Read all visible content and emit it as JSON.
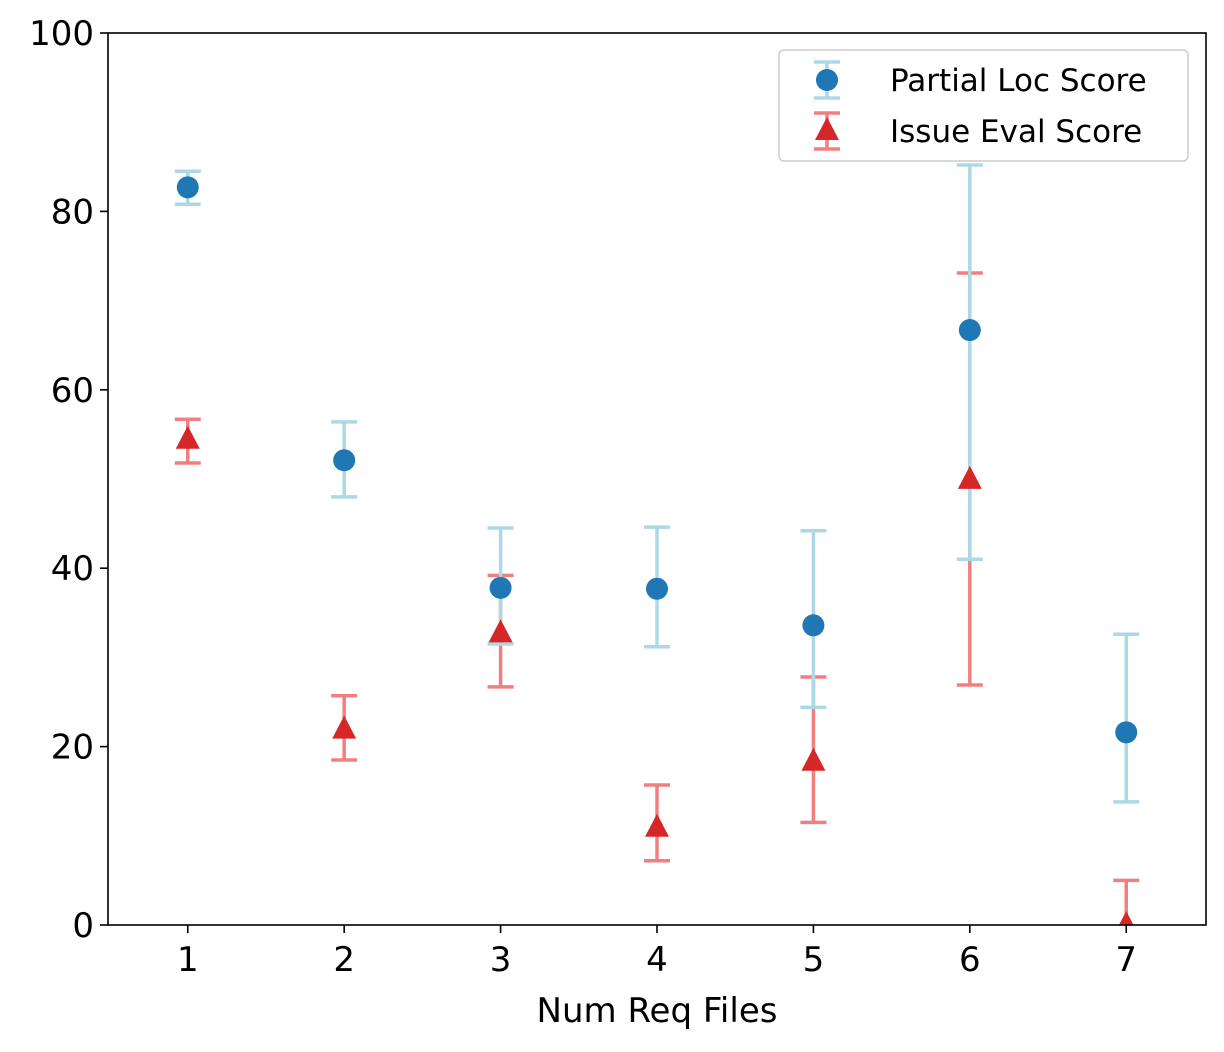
{
  "chart_data": {
    "type": "scatter",
    "title": "",
    "xlabel": "Num Req Files",
    "ylabel": "",
    "xlim": [
      0.49,
      7.51
    ],
    "ylim": [
      0,
      100
    ],
    "xticks": [
      "1",
      "2",
      "3",
      "4",
      "5",
      "6",
      "7"
    ],
    "yticks": [
      "0",
      "20",
      "40",
      "60",
      "80",
      "100"
    ],
    "grid": false,
    "legend_position": "top-right",
    "x": [
      1,
      2,
      3,
      4,
      5,
      6,
      7
    ],
    "series": [
      {
        "name": "Partial Loc Score",
        "marker": "circle",
        "color": "#1f77b4",
        "error_color": "#add8e6",
        "values": [
          82.7,
          52.1,
          37.8,
          37.7,
          33.6,
          66.7,
          21.6
        ],
        "err_low": [
          80.8,
          48.0,
          31.5,
          31.2,
          24.4,
          41.0,
          13.8
        ],
        "err_high": [
          84.5,
          56.4,
          44.5,
          44.6,
          44.2,
          85.2,
          32.6
        ]
      },
      {
        "name": "Issue Eval Score",
        "marker": "triangle",
        "color": "#d62728",
        "error_color": "#f08080",
        "values": [
          54.4,
          21.9,
          32.7,
          10.9,
          18.3,
          49.9,
          0.0
        ],
        "err_low": [
          51.8,
          18.5,
          26.7,
          7.2,
          11.5,
          26.9,
          -5.0
        ],
        "err_high": [
          56.7,
          25.7,
          39.2,
          15.7,
          27.8,
          73.1,
          5.0
        ]
      }
    ]
  }
}
